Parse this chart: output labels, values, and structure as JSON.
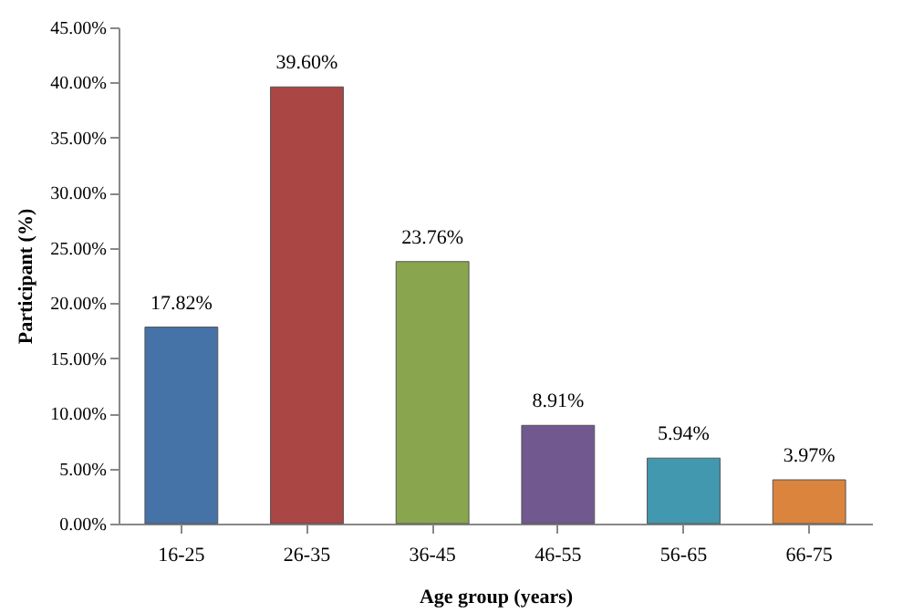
{
  "chart_data": {
    "type": "bar",
    "xlabel": "Age group (years)",
    "ylabel": "Participant (%)",
    "categories": [
      "16-25",
      "26-35",
      "36-45",
      "46-55",
      "56-65",
      "66-75"
    ],
    "values": [
      17.82,
      39.6,
      23.76,
      8.91,
      5.94,
      3.97
    ],
    "colors": [
      "#4572a7",
      "#aa4643",
      "#89a54e",
      "#71588f",
      "#4198af",
      "#db843d"
    ],
    "value_labels": [
      "17.82%",
      "39.60%",
      "23.76%",
      "8.91%",
      "5.94%",
      "3.97%"
    ],
    "ylim": [
      0,
      45
    ],
    "yticks": [
      {
        "value": 0,
        "label": "0.00%"
      },
      {
        "value": 5,
        "label": "5.00%"
      },
      {
        "value": 10,
        "label": "10.00%"
      },
      {
        "value": 15,
        "label": "15.00%"
      },
      {
        "value": 20,
        "label": "20.00%"
      },
      {
        "value": 25,
        "label": "25.00%"
      },
      {
        "value": 30,
        "label": "30.00%"
      },
      {
        "value": 35,
        "label": "35.00%"
      },
      {
        "value": 40,
        "label": "40.00%"
      },
      {
        "value": 45,
        "label": "45.00%"
      }
    ],
    "grid": false,
    "legend": false
  }
}
